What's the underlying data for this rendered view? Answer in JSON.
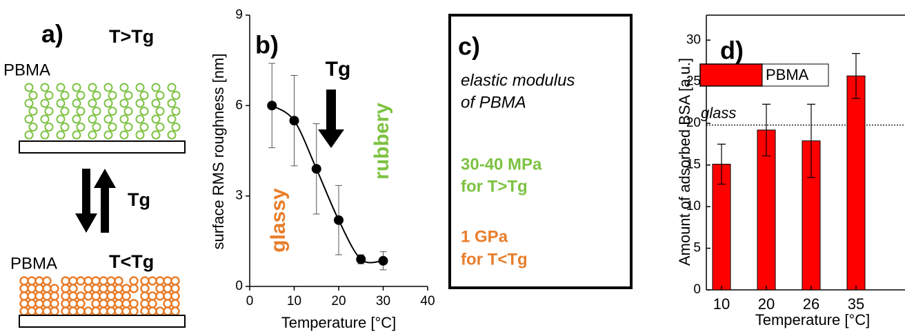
{
  "panel_a": {
    "label": "a)",
    "top_state": "T>Tg",
    "top_polymer": "PBMA",
    "transition": "Tg",
    "bottom_state": "T<Tg",
    "bottom_polymer": "PBMA"
  },
  "chart_data": [
    {
      "type": "scatter",
      "panel_label": "b)",
      "xlabel": "Temperature [°C]",
      "ylabel": "surface RMS roughness [nm]",
      "x": [
        5,
        10,
        15,
        20,
        25,
        30
      ],
      "values": [
        6.0,
        5.5,
        3.9,
        2.2,
        0.9,
        0.85
      ],
      "errors": [
        1.4,
        1.5,
        1.5,
        1.15,
        0.15,
        0.3
      ],
      "color": "#000000",
      "fit_line": true,
      "xlim": [
        0,
        40
      ],
      "xticks": [
        0,
        10,
        20,
        30,
        40
      ],
      "ylim": [
        0,
        9
      ],
      "yticks": [
        0,
        3,
        6,
        9
      ],
      "annotations": [
        {
          "text": "Tg",
          "color": "#000000"
        },
        {
          "text": "glassy",
          "color": "#e87d2a"
        },
        {
          "text": "rubbery",
          "color": "#7dc242"
        }
      ]
    },
    {
      "type": "bar",
      "panel_label": "d)",
      "xlabel": "Temperature [°C]",
      "ylabel": "Amount of adsorbed BSA [a.u.]",
      "categories": [
        "10",
        "20",
        "26",
        "35"
      ],
      "series": [
        {
          "name": "PBMA",
          "color": "#ff0000",
          "values": [
            15.1,
            19.2,
            17.9,
            25.7
          ],
          "errors": [
            2.4,
            3.1,
            4.4,
            2.7
          ]
        }
      ],
      "ylim": [
        0,
        33
      ],
      "yticks": [
        0,
        5,
        10,
        15,
        20,
        25,
        30
      ],
      "reference_line": {
        "label": "glass",
        "value": 19.8
      },
      "legend": "upper left"
    }
  ],
  "panel_c": {
    "label": "c)",
    "title_lines": [
      "elastic modulus",
      "of PBMA"
    ],
    "rubbery_lines": [
      "30-40 MPa",
      "for T>Tg"
    ],
    "glassy_lines": [
      "1 GPa",
      "for T<Tg"
    ]
  }
}
